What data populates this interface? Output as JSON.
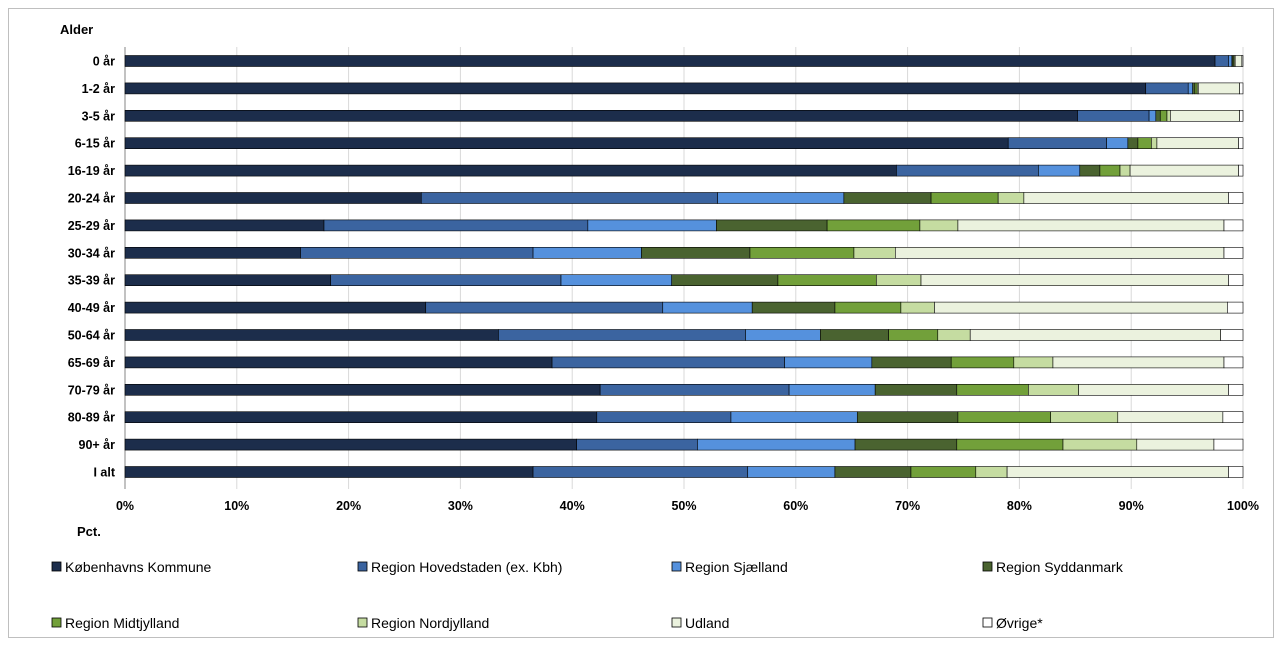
{
  "chart_data": {
    "type": "bar",
    "orientation": "horizontal",
    "stacked": true,
    "percent_stacked": true,
    "ylabel": "Alder",
    "xlabel": "Pct.",
    "categories": [
      "0 år",
      "1-2 år",
      "3-5 år",
      "6-15 år",
      "16-19 år",
      "20-24 år",
      "25-29 år",
      "30-34 år",
      "35-39 år",
      "40-49 år",
      "50-64 år",
      "65-69 år",
      "70-79 år",
      "80-89 år",
      "90+ år",
      "I alt"
    ],
    "x_ticks": [
      "0%",
      "10%",
      "20%",
      "30%",
      "40%",
      "50%",
      "60%",
      "70%",
      "80%",
      "90%",
      "100%"
    ],
    "xlim": [
      0,
      100
    ],
    "grid": true,
    "legend_position": "bottom",
    "series": [
      {
        "name": "Københavns Kommune",
        "color": "#1c2d4b",
        "values": [
          97.5,
          91.3,
          85.2,
          79.0,
          69.0,
          26.5,
          17.8,
          15.7,
          18.4,
          26.9,
          33.4,
          38.2,
          42.5,
          42.2,
          40.4,
          36.5
        ]
      },
      {
        "name": "Region Hovedstaden (ex. Kbh)",
        "color": "#3b64a0",
        "values": [
          1.2,
          3.8,
          6.4,
          8.8,
          12.7,
          26.5,
          23.6,
          20.8,
          20.6,
          21.2,
          22.1,
          20.8,
          16.9,
          12.0,
          10.8,
          19.2
        ]
      },
      {
        "name": "Region Sjælland",
        "color": "#5591dd",
        "values": [
          0.3,
          0.4,
          0.6,
          1.9,
          3.7,
          11.3,
          11.5,
          9.7,
          9.9,
          8.0,
          6.7,
          7.8,
          7.7,
          11.3,
          14.1,
          7.8
        ]
      },
      {
        "name": "Region Syddanmark",
        "color": "#4a6330",
        "values": [
          0.1,
          0.2,
          0.4,
          0.9,
          1.8,
          7.8,
          9.9,
          9.7,
          9.5,
          7.4,
          6.1,
          7.1,
          7.3,
          9.0,
          9.1,
          6.8
        ]
      },
      {
        "name": "Region Midtjylland",
        "color": "#72a03a",
        "values": [
          0.1,
          0.2,
          0.6,
          1.2,
          1.8,
          6.0,
          8.3,
          9.3,
          8.8,
          5.9,
          4.4,
          5.6,
          6.4,
          8.3,
          9.5,
          5.8
        ]
      },
      {
        "name": "Region Nordjylland",
        "color": "#c5dca1",
        "values": [
          0.1,
          0.1,
          0.3,
          0.5,
          0.9,
          2.3,
          3.4,
          3.7,
          4.0,
          3.0,
          2.9,
          3.5,
          4.5,
          6.0,
          6.6,
          2.8
        ]
      },
      {
        "name": "Udland",
        "color": "#ebf2de",
        "values": [
          0.6,
          3.7,
          6.2,
          7.3,
          9.7,
          18.3,
          23.8,
          29.4,
          27.5,
          26.2,
          22.4,
          15.3,
          13.4,
          9.4,
          6.9,
          19.8
        ]
      },
      {
        "name": "Øvrige*",
        "color": "#ffffff",
        "values": [
          0.1,
          0.3,
          0.3,
          0.4,
          0.4,
          1.3,
          1.7,
          1.7,
          1.3,
          1.4,
          2.0,
          1.7,
          1.3,
          1.8,
          2.6,
          1.3
        ]
      }
    ]
  }
}
